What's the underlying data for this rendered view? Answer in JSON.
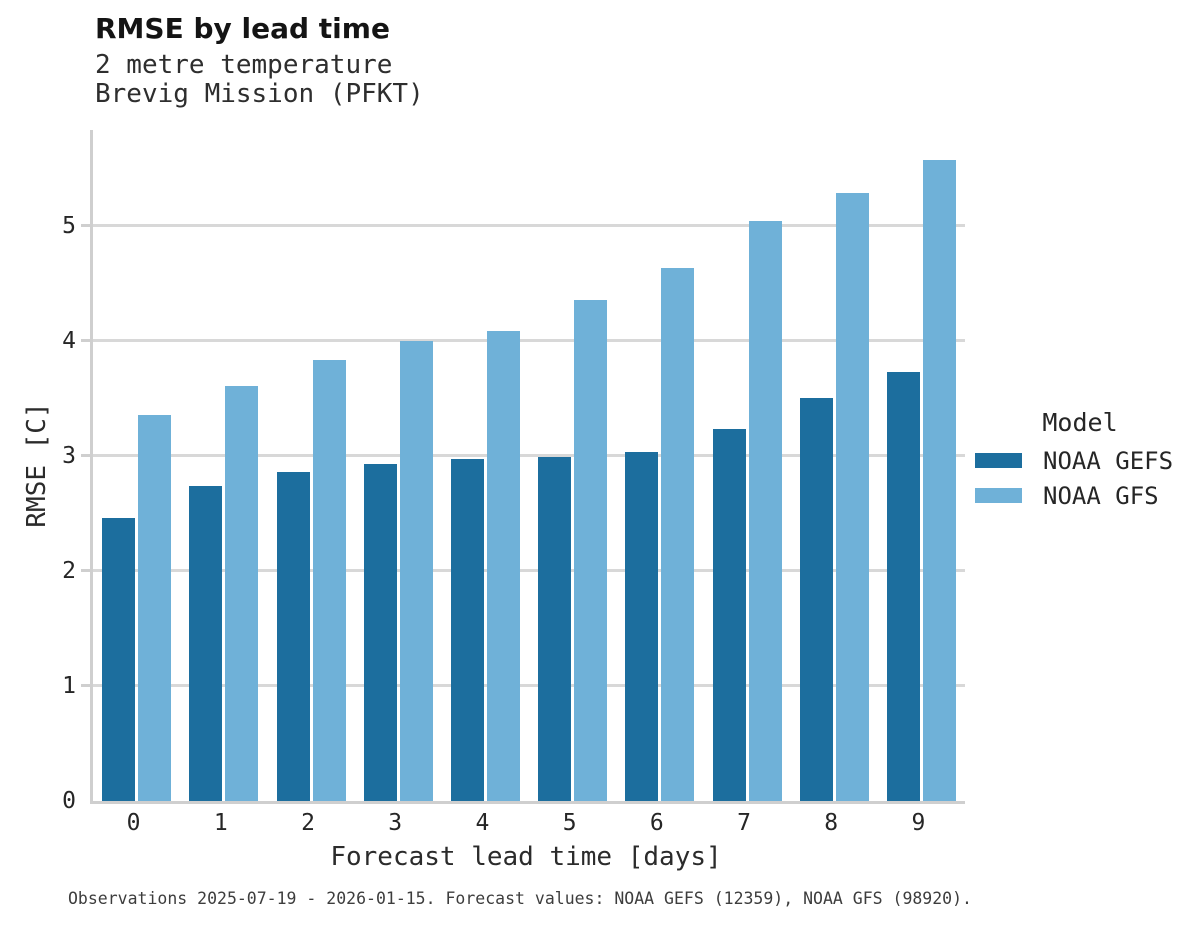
{
  "chart_data": {
    "type": "bar",
    "title": "RMSE by lead time",
    "subtitle": [
      "2 metre temperature",
      "Brevig Mission (PFKT)"
    ],
    "xlabel": "Forecast lead time [days]",
    "ylabel": "RMSE [C]",
    "categories": [
      "0",
      "1",
      "2",
      "3",
      "4",
      "5",
      "6",
      "7",
      "8",
      "9"
    ],
    "series": [
      {
        "name": "NOAA GEFS",
        "color": "#1c6e9e",
        "values": [
          2.46,
          2.74,
          2.86,
          2.93,
          2.97,
          2.99,
          3.03,
          3.23,
          3.5,
          3.73
        ]
      },
      {
        "name": "NOAA GFS",
        "color": "#6fb1d8",
        "values": [
          3.35,
          3.61,
          3.83,
          4.0,
          4.08,
          4.35,
          4.63,
          5.04,
          5.28,
          5.57
        ]
      }
    ],
    "ylim": [
      0,
      5.83
    ],
    "yticks": [
      0,
      1,
      2,
      3,
      4,
      5
    ],
    "grid": "horizontal",
    "legend_title": "Model",
    "legend_position": "right",
    "caption": "Observations 2025-07-19 - 2026-01-15. Forecast values: NOAA GEFS (12359), NOAA GFS (98920)."
  },
  "colors": {
    "gridline": "#d8d8d8",
    "spine": "#cfcfcf",
    "text": "#262626"
  }
}
